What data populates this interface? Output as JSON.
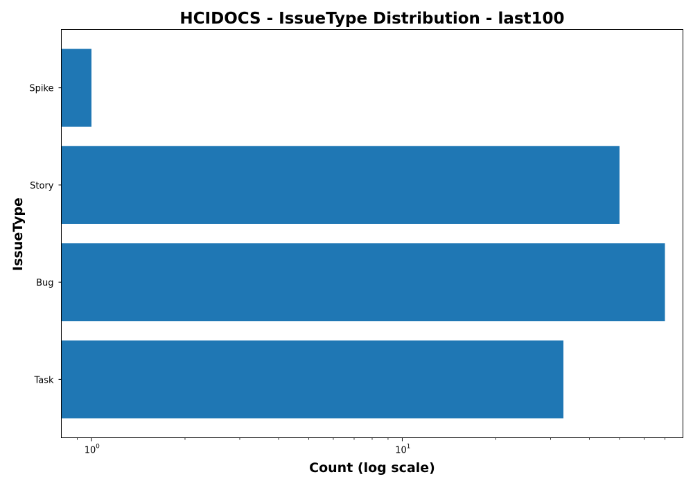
{
  "chart_data": {
    "type": "bar",
    "orientation": "horizontal",
    "title": "HCIDOCS - IssueType Distribution - last100",
    "xlabel": "Count (log scale)",
    "ylabel": "IssueType",
    "x_scale": "log",
    "xlim": [
      0.8,
      80
    ],
    "grid": false,
    "bar_color": "#1f77b4",
    "categories": [
      "Task",
      "Bug",
      "Story",
      "Spike"
    ],
    "values": [
      33,
      70,
      50,
      1
    ],
    "x_major_ticks": [
      {
        "value": 1,
        "base": "10",
        "exponent": "0"
      },
      {
        "value": 10,
        "base": "10",
        "exponent": "1"
      }
    ]
  }
}
